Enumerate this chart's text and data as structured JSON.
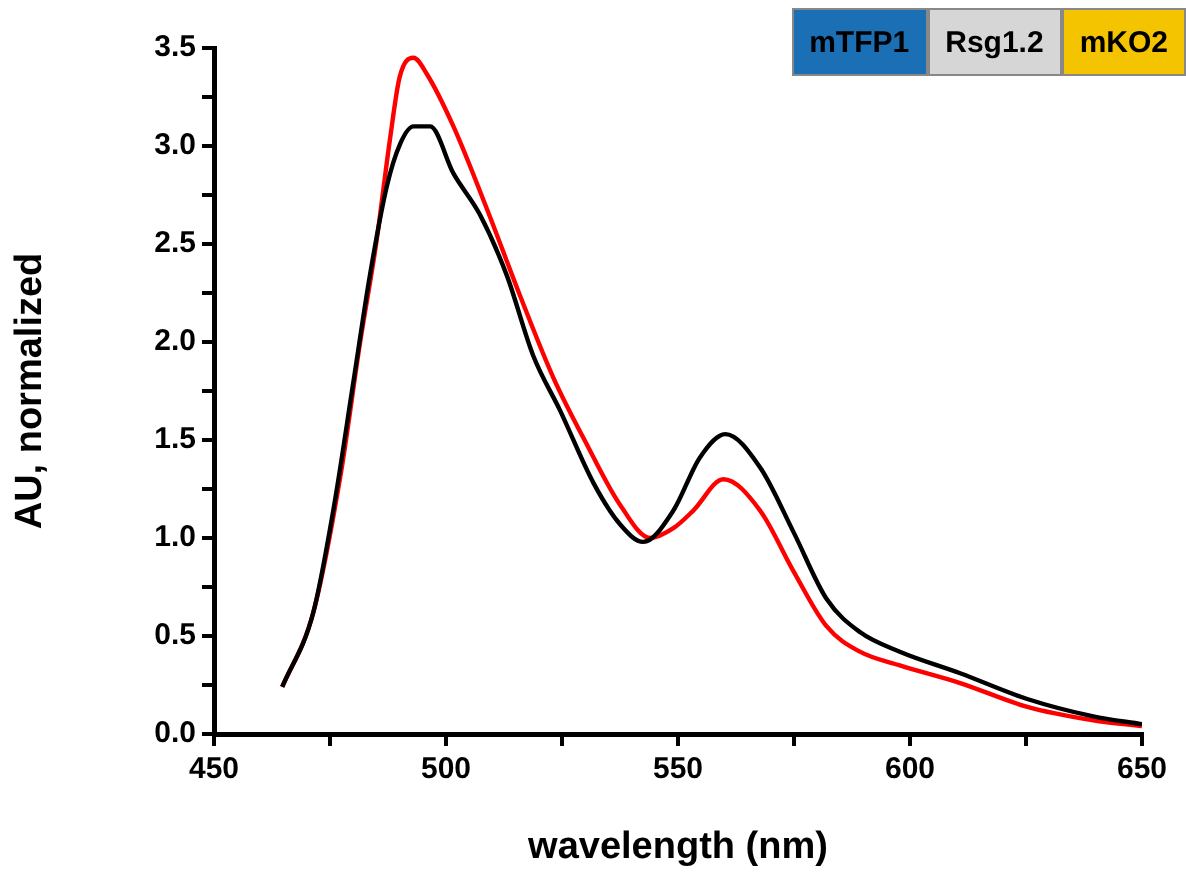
{
  "chart_data": {
    "type": "line",
    "xlabel": "wavelength (nm)",
    "ylabel": "AU, normalized",
    "annotations": [
      "mTFP1",
      "Rsg1.2",
      "mKO2"
    ],
    "xlim": [
      450,
      650
    ],
    "ylim": [
      0,
      3.5
    ],
    "xticks": [
      450,
      {
        "value": 475,
        "label": null
      },
      500,
      {
        "value": 525,
        "label": null
      },
      550,
      {
        "value": 575,
        "label": null
      },
      600,
      {
        "value": 625,
        "label": null
      },
      650
    ],
    "yticks": [
      {
        "value": 0,
        "label": "0.0"
      },
      {
        "value": 0.25,
        "label": null
      },
      0.5,
      {
        "value": 0.75,
        "label": null
      },
      {
        "value": 1,
        "label": "1.0"
      },
      {
        "value": 1.25,
        "label": null
      },
      1.5,
      {
        "value": 1.75,
        "label": null
      },
      {
        "value": 2,
        "label": "2.0"
      },
      {
        "value": 2.25,
        "label": null
      },
      2.5,
      {
        "value": 2.75,
        "label": null
      },
      {
        "value": 3,
        "label": "3.0"
      },
      {
        "value": 3.25,
        "label": null
      },
      3.5
    ],
    "grid": false,
    "legend": false,
    "marker": "none",
    "line_style": "solid",
    "series": [
      {
        "color": "#000000",
        "x": [
          464.7,
          471.4,
          475.7,
          480,
          483.6,
          487.2,
          490.1,
          493,
          496.6,
          501.6,
          507.3,
          513.1,
          518.8,
          524.6,
          531.8,
          537.5,
          542.5,
          549,
          554.7,
          560.2,
          567.7,
          574.9,
          582,
          589.2,
          597.8,
          610.8,
          625.1,
          639.5,
          650
        ],
        "values": [
          0.24,
          0.62,
          1.14,
          1.79,
          2.34,
          2.79,
          3.01,
          3.1,
          3.1,
          2.86,
          2.65,
          2.34,
          1.93,
          1.65,
          1.28,
          1.07,
          0.98,
          1.14,
          1.41,
          1.53,
          1.36,
          1.03,
          0.69,
          0.52,
          0.42,
          0.31,
          0.18,
          0.09,
          0.05
        ]
      },
      {
        "color": "#ff0000",
        "x": [
          464.7,
          471.4,
          477.2,
          481.5,
          485,
          487.9,
          490,
          493,
          495.8,
          501.6,
          508.8,
          515.9,
          523.1,
          530.3,
          537.5,
          544,
          549,
          553.3,
          559.8,
          567.7,
          574.9,
          582,
          589.2,
          597.8,
          610.8,
          625.1,
          639.5,
          650
        ],
        "values": [
          0.24,
          0.62,
          1.31,
          2.0,
          2.51,
          3.03,
          3.35,
          3.45,
          3.37,
          3.1,
          2.68,
          2.24,
          1.82,
          1.48,
          1.17,
          1.0,
          1.05,
          1.14,
          1.3,
          1.14,
          0.83,
          0.55,
          0.42,
          0.35,
          0.26,
          0.14,
          0.07,
          0.04
        ]
      }
    ]
  }
}
